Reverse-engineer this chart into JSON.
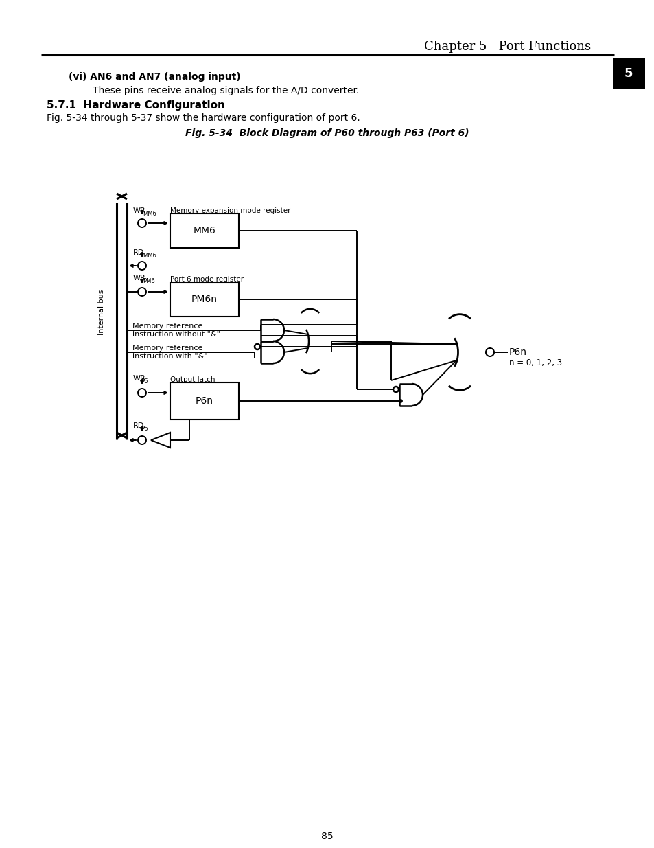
{
  "page_title": "Chapter 5   Port Functions",
  "page_number": "85",
  "vi_bold": "(vi) AN6 and AN7 (analog input)",
  "vi_text": "These pins receive analog signals for the A/D converter.",
  "section_title": "5.7.1  Hardware Configuration",
  "section_text": "Fig. 5-34 through 5-37 show the hardware configuration of port 6.",
  "fig_title": "Fig. 5-34  Block Diagram of P60 through P63 (Port 6)",
  "background": "#ffffff",
  "text_color": "#000000",
  "mm6_label": "Memory expansion mode register",
  "mm6_box": "MM6",
  "pm6_label": "Port 6 mode register",
  "pm6_box": "PM6n",
  "mem1_line1": "Memory reference",
  "mem1_line2": "instruction without \"&\"",
  "mem2_line1": "Memory reference",
  "mem2_line2": "instruction with \"&\"",
  "p6n_label": "Output latch",
  "p6n_box": "P6n",
  "internal_bus": "Internal bus",
  "p6n_out": "P6n",
  "p6n_n": "n = 0, 1, 2, 3"
}
